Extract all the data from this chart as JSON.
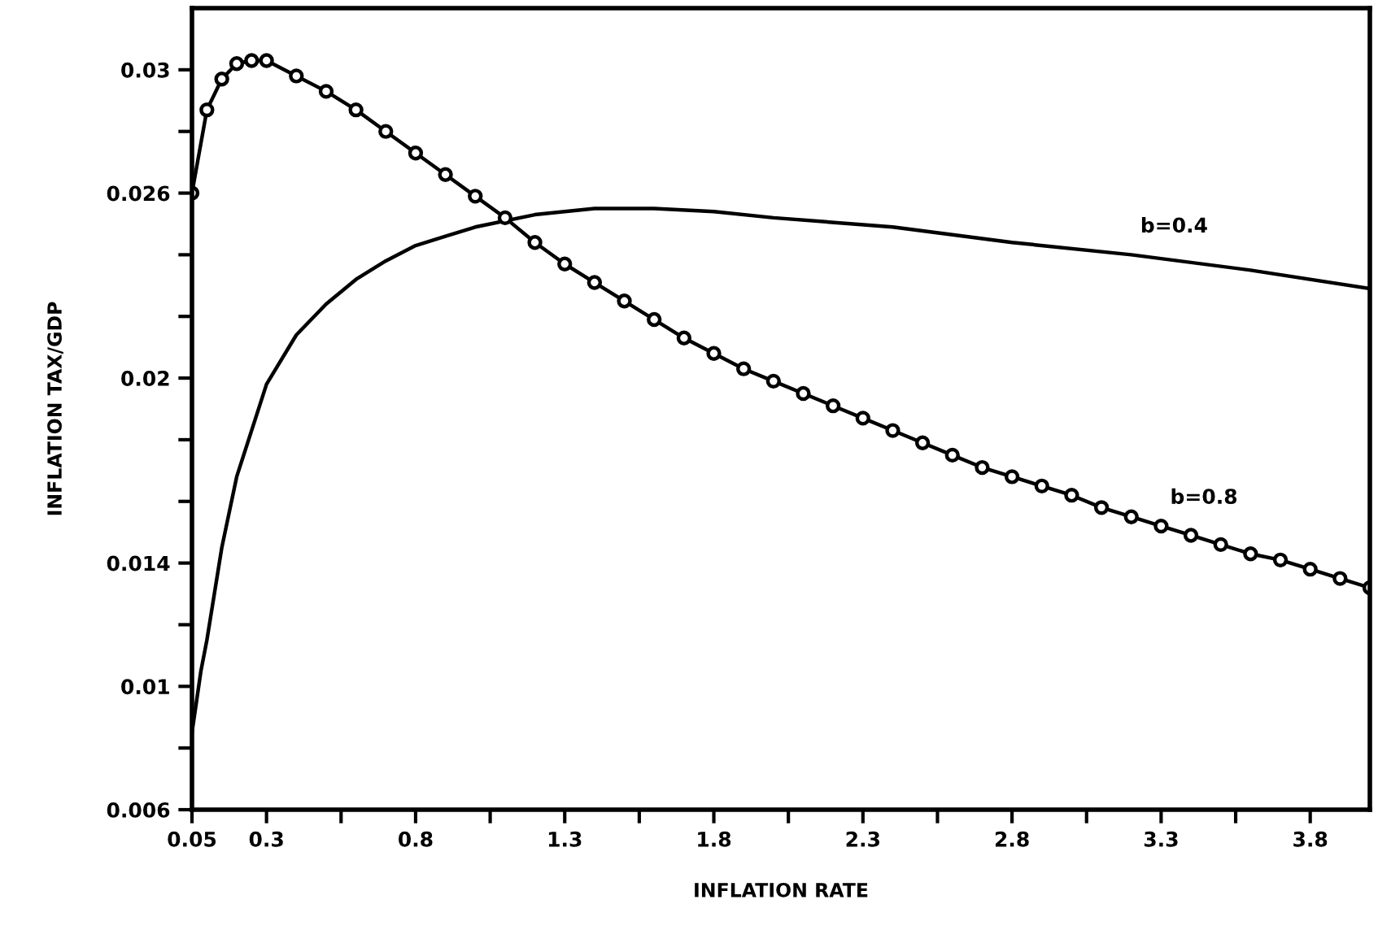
{
  "chart_data": {
    "type": "line",
    "xlabel": "INFLATION RATE",
    "ylabel": "INFLATION TAX/GDP",
    "xlim": [
      0.05,
      4.0
    ],
    "ylim": [
      0.006,
      0.032
    ],
    "xticks": [
      0.05,
      0.3,
      {
        "value": 0.55,
        "label": null
      },
      0.8,
      {
        "value": 1.05,
        "label": null
      },
      1.3,
      {
        "value": 1.55,
        "label": null
      },
      1.8,
      {
        "value": 2.05,
        "label": null
      },
      2.3,
      {
        "value": 2.55,
        "label": null
      },
      2.8,
      {
        "value": 3.05,
        "label": null
      },
      3.3,
      {
        "value": 3.55,
        "label": null
      },
      3.8
    ],
    "yticks": [
      0.006,
      {
        "value": 0.008,
        "label": null
      },
      0.01,
      {
        "value": 0.012,
        "label": null
      },
      0.014,
      {
        "value": 0.016,
        "label": null
      },
      {
        "value": 0.018,
        "label": null
      },
      0.02,
      {
        "value": 0.022,
        "label": null
      },
      {
        "value": 0.024,
        "label": null
      },
      0.026,
      {
        "value": 0.028,
        "label": null
      },
      0.03
    ],
    "grid": false,
    "legend": false,
    "series": [
      {
        "name": "b=0.4",
        "color": "#000000",
        "marker": "none",
        "line_style": "solid",
        "x": [
          0.05,
          0.08,
          0.1,
          0.15,
          0.2,
          0.3,
          0.4,
          0.5,
          0.6,
          0.7,
          0.8,
          0.9,
          1.0,
          1.2,
          1.4,
          1.6,
          1.8,
          2.0,
          2.4,
          2.8,
          3.2,
          3.6,
          4.0
        ],
        "values": [
          0.0085,
          0.0105,
          0.0115,
          0.0145,
          0.0168,
          0.0198,
          0.0214,
          0.0224,
          0.0232,
          0.0238,
          0.0243,
          0.0246,
          0.0249,
          0.0253,
          0.0255,
          0.0255,
          0.0254,
          0.0252,
          0.0249,
          0.0244,
          0.024,
          0.0235,
          0.0229
        ]
      },
      {
        "name": "b=0.8",
        "color": "#000000",
        "marker": "circle",
        "line_style": "solid",
        "x": [
          0.05,
          0.1,
          0.15,
          0.2,
          0.25,
          0.3,
          0.4,
          0.5,
          0.6,
          0.7,
          0.8,
          0.9,
          1.0,
          1.1,
          1.2,
          1.3,
          1.4,
          1.5,
          1.6,
          1.7,
          1.8,
          1.9,
          2.0,
          2.1,
          2.2,
          2.3,
          2.4,
          2.5,
          2.6,
          2.7,
          2.8,
          2.9,
          3.0,
          3.1,
          3.2,
          3.3,
          3.4,
          3.5,
          3.6,
          3.7,
          3.8,
          3.9,
          4.0
        ],
        "values": [
          0.026,
          0.0287,
          0.0297,
          0.0302,
          0.0303,
          0.0303,
          0.0298,
          0.0293,
          0.0287,
          0.028,
          0.0273,
          0.0266,
          0.0259,
          0.0252,
          0.0244,
          0.0237,
          0.0231,
          0.0225,
          0.0219,
          0.0213,
          0.0208,
          0.0203,
          0.0199,
          0.0195,
          0.0191,
          0.0187,
          0.0183,
          0.0179,
          0.0175,
          0.0171,
          0.0168,
          0.0165,
          0.0162,
          0.0158,
          0.0155,
          0.0152,
          0.0149,
          0.0146,
          0.0143,
          0.0141,
          0.0138,
          0.0135,
          0.0132
        ]
      }
    ]
  }
}
